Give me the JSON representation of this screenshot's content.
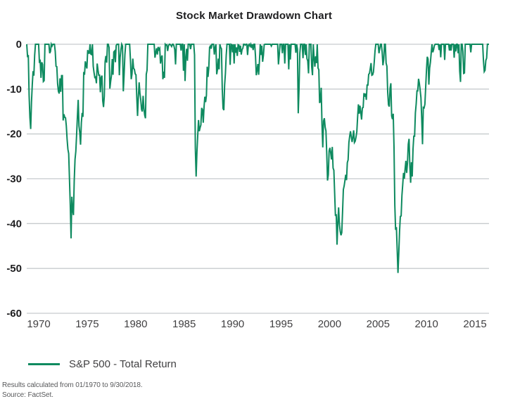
{
  "title": "Stock Market Drawdown Chart",
  "legend": {
    "label": "S&P 500 - Total Return"
  },
  "footnotes": {
    "line1": "Results calculated from 01/1970 to 9/30/2018.",
    "line2": "Source: FactSet."
  },
  "colors": {
    "line": "#0e8a5f",
    "grid": "#c7cbce",
    "y_label": "#1d1d1f",
    "x_label": "#414042",
    "background": "#ffffff"
  },
  "chart_data": {
    "type": "line",
    "title": "Stock Market Drawdown Chart",
    "xlabel": "",
    "ylabel": "",
    "unit": "percent drawdown from prior peak",
    "grid": "horizontal",
    "legend_position": "bottom-left",
    "ylim": [
      -60,
      0
    ],
    "y_ticks": [
      "0",
      "-10",
      "-20",
      "-30",
      "-40",
      "-50",
      "-60"
    ],
    "x_ticks": [
      "1970",
      "1975",
      "1980",
      "1985",
      "1990",
      "1995",
      "2000",
      "2005",
      "2010",
      "2015"
    ],
    "series": [
      {
        "name": "S&P 500 - Total Return",
        "start": "1970-01",
        "end": "2018-09",
        "frequency": "monthly",
        "values": [
          0,
          -2.7,
          -2.6,
          -11.4,
          -16.3,
          -18.9,
          -12.9,
          -9.0,
          -6.0,
          -7.0,
          -2.5,
          0,
          0,
          0,
          0,
          0,
          -3.9,
          -3.7,
          -7.5,
          -4.0,
          -4.5,
          -8.3,
          -8.1,
          0,
          0,
          0,
          0,
          0,
          0,
          -2.0,
          -1.6,
          0,
          -0.4,
          0,
          0,
          0,
          -1.6,
          -4.9,
          -5.0,
          -8.8,
          -10.5,
          -11.0,
          -7.6,
          -10.6,
          -7.0,
          -7.0,
          -17.0,
          -15.6,
          -16.3,
          -16.4,
          -18.2,
          -21.2,
          -23.4,
          -24.4,
          -30.1,
          -35.9,
          -43.3,
          -34.0,
          -37.0,
          -38.1,
          -30.4,
          -25.7,
          -23.9,
          -20.2,
          -16.2,
          -12.4,
          -18.2,
          -19.7,
          -22.4,
          -17.5,
          -15.3,
          -16.2,
          -6.2,
          -6.8,
          -3.8,
          -4.7,
          -5.4,
          -1.3,
          -2.0,
          -2.0,
          0,
          -2.2,
          -2.3,
          0,
          -4.9,
          -6.3,
          -7.4,
          -7.3,
          -8.7,
          -4.3,
          -5.7,
          -6.9,
          -6.9,
          -10.7,
          -7.4,
          -7.0,
          -12.6,
          -14.0,
          -11.6,
          -3.9,
          -2.6,
          -4.1,
          0,
          0,
          -0.7,
          -9.9,
          -8.3,
          -7.0,
          -3.3,
          -6.8,
          -1.7,
          -1.5,
          -4.0,
          -0.3,
          0,
          0,
          0,
          -6.9,
          -2.9,
          -1.2,
          0,
          -0.4,
          -10.5,
          -6.8,
          -2.4,
          0,
          0,
          0,
          0,
          0,
          0,
          -3.4,
          -7.8,
          -6.6,
          -3.2,
          -5.4,
          -5.6,
          -6.6,
          -6.8,
          -11.7,
          -16.0,
          -11.8,
          -8.5,
          -10.9,
          -12.3,
          -14.5,
          -15.0,
          -11.5,
          -14.3,
          -15.8,
          -16.5,
          -6.7,
          -5.8,
          0,
          0,
          0,
          0,
          0,
          0,
          0,
          0,
          0,
          -3.0,
          -1.9,
          -0.9,
          -2.3,
          -0.6,
          -1.2,
          -0.9,
          -4.3,
          -3.0,
          -2.5,
          -7.8,
          -6.1,
          -7.5,
          0,
          -0.2,
          -0.1,
          -1.5,
          -0.4,
          0,
          0,
          -0.2,
          -0.5,
          0,
          0,
          -0.4,
          -1.2,
          -4.5,
          0,
          0,
          0,
          0,
          0,
          0,
          -1.4,
          0,
          0,
          -5.9,
          0,
          -8.2,
          -3.1,
          -1.0,
          -3.7,
          0,
          0,
          0,
          -1.1,
          0,
          0,
          0,
          0,
          -2.4,
          -23.2,
          -29.5,
          -24.1,
          -20.4,
          -16.9,
          -19.4,
          -18.6,
          -18.0,
          -14.2,
          -14.6,
          -17.5,
          -14.0,
          -11.7,
          -12.9,
          -11.4,
          -5.0,
          -7.3,
          -5.3,
          -0.7,
          -0.4,
          -1.0,
          0,
          0,
          0,
          -2.3,
          -0.7,
          0,
          -6.7,
          -5.6,
          -3.2,
          -5.6,
          0,
          -0.7,
          -1.0,
          -9.9,
          -14.3,
          -14.7,
          -9.1,
          -6.5,
          -2.5,
          0,
          0,
          0,
          0,
          -4.6,
          0,
          -0.1,
          -1.8,
          0,
          -4.3,
          0,
          -1.9,
          -0.7,
          -2.6,
          -0.1,
          -0.2,
          -1.7,
          -0.3,
          -2.3,
          -1.2,
          -0.9,
          0,
          0,
          -0.2,
          0,
          0,
          -2.4,
          -0.2,
          0,
          -0.4,
          0,
          -0.8,
          0,
          -1.3,
          0,
          0,
          -2.7,
          -6.9,
          -5.8,
          -4.4,
          -6.8,
          -3.7,
          0,
          -2.4,
          -0.3,
          -3.9,
          -2.5,
          -0.1,
          0,
          0,
          0,
          0,
          0,
          0,
          0,
          0,
          -0.4,
          0,
          0,
          0,
          0,
          0,
          0,
          0,
          0,
          -4.5,
          -2.4,
          0,
          0,
          0,
          -2.0,
          0,
          0,
          -4.3,
          0,
          0,
          0,
          0,
          -5.6,
          0,
          -3.4,
          0,
          0,
          0,
          0,
          0,
          0,
          -1.9,
          0,
          -1.1,
          -15.4,
          -9.9,
          -2.0,
          0,
          0,
          0,
          -3.1,
          0,
          0,
          -2.4,
          0,
          -3.2,
          -3.7,
          -6.5,
          0,
          0,
          0,
          -5.0,
          -6.9,
          0,
          -3.0,
          -5.0,
          -2.7,
          -4.2,
          0,
          -5.3,
          -5.7,
          -13.1,
          -12.7,
          -9.7,
          -17.9,
          -23.0,
          -17.1,
          -16.5,
          -18.5,
          -19.3,
          -24.3,
          -30.4,
          -29.1,
          -23.8,
          -23.1,
          -24.2,
          -25.7,
          -22.9,
          -27.6,
          -28.1,
          -33.2,
          -38.3,
          -37.9,
          -44.7,
          -39.9,
          -36.4,
          -40.1,
          -41.7,
          -42.6,
          -42.0,
          -37.3,
          -32.4,
          -31.6,
          -30.4,
          -29.1,
          -30.3,
          -26.4,
          -25.8,
          -21.9,
          -20.5,
          -19.4,
          -20.6,
          -21.8,
          -20.7,
          -19.2,
          -21.9,
          -21.6,
          -20.7,
          -19.5,
          -16.3,
          -13.4,
          -15.5,
          -13.7,
          -15.2,
          -16.8,
          -14.2,
          -14.1,
          -10.9,
          -11.7,
          -11.0,
          -12.4,
          -9.1,
          -9.1,
          -6.7,
          -6.5,
          -5.4,
          -4.2,
          -6.9,
          -6.8,
          -6.2,
          -4.0,
          -1.5,
          0,
          0,
          0,
          0,
          -2.0,
          -1.0,
          0,
          0,
          -1.7,
          -4.7,
          -3.4,
          0,
          0,
          -4.2,
          -4.9,
          -10.6,
          -13.5,
          -13.9,
          -9.8,
          -8.7,
          -16.0,
          -16.7,
          -15.5,
          -23.0,
          -35.9,
          -41.4,
          -40.8,
          -45.8,
          -51.0,
          -46.7,
          -41.7,
          -38.4,
          -38.3,
          -33.7,
          -31.3,
          -28.7,
          -30.0,
          -27.8,
          -26.0,
          -28.7,
          -26.5,
          -22.3,
          -21.1,
          -27.2,
          -30.9,
          -26.3,
          -29.5,
          -23.4,
          -20.5,
          -20.5,
          -15.3,
          -13.3,
          -10.4,
          -10.4,
          -7.7,
          -8.7,
          -10.2,
          -11.9,
          -16.6,
          -22.3,
          -14.1,
          -14.2,
          -13.4,
          -9.6,
          -5.8,
          -2.8,
          -3.3,
          -9.0,
          -5.3,
          -4.0,
          -1.9,
          0,
          -1.8,
          -1.2,
          -0.3,
          0,
          0,
          0,
          0,
          0,
          -1.3,
          0,
          -2.9,
          0,
          0,
          0,
          0,
          -3.5,
          0,
          0,
          0,
          0,
          0,
          -1.4,
          0,
          -1.4,
          0,
          0,
          0,
          -3.0,
          0,
          -1.6,
          0,
          0,
          -2.0,
          0,
          -6.0,
          -8.4,
          0,
          0,
          -1.6,
          -6.5,
          -6.4,
          0,
          0,
          0,
          0,
          0,
          0,
          0,
          -1.8,
          0,
          0,
          0,
          0,
          0,
          0,
          0,
          0,
          0,
          0,
          0,
          0,
          0,
          0,
          0,
          -3.7,
          -6.1,
          -5.8,
          -3.6,
          -3.1,
          0,
          0,
          0
        ]
      }
    ]
  }
}
